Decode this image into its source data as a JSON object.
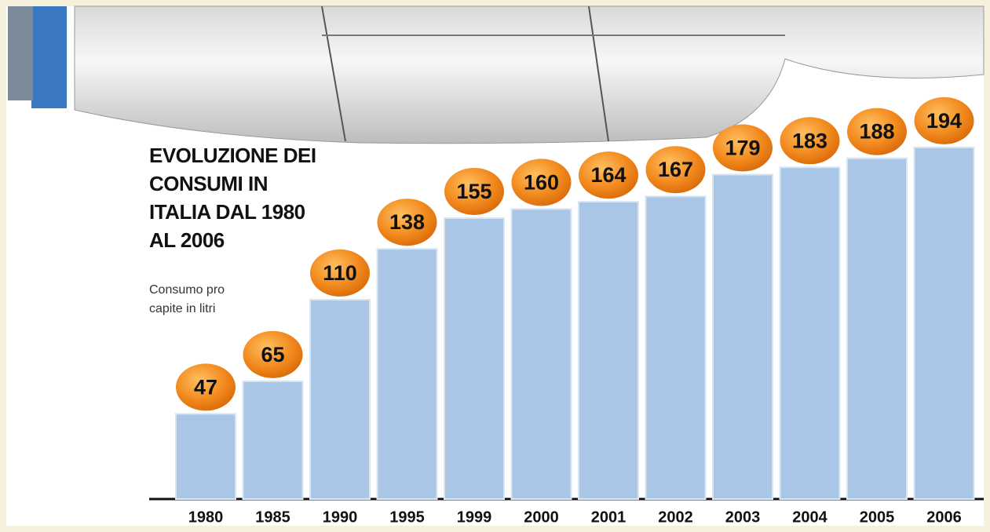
{
  "chart_data": {
    "type": "bar",
    "title": "EVOLUZIONE DEI CONSUMI IN ITALIA DAL 1980 AL 2006",
    "subtitle": "Consumo pro capite in litri",
    "categories": [
      "1980",
      "1985",
      "1990",
      "1995",
      "1999",
      "2000",
      "2001",
      "2002",
      "2003",
      "2004",
      "2005",
      "2006"
    ],
    "values": [
      47,
      65,
      110,
      138,
      155,
      160,
      164,
      167,
      179,
      183,
      188,
      194
    ],
    "color": "#a9c6e6"
  }
}
